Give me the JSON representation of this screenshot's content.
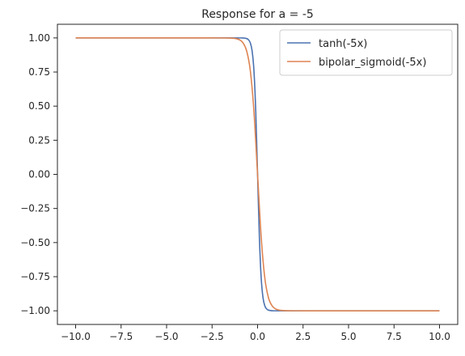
{
  "chart_data": {
    "type": "line",
    "title": "Response for a = -5",
    "xlabel": "",
    "ylabel": "",
    "xlim": [
      -11.0,
      11.0
    ],
    "ylim": [
      -1.1,
      1.1
    ],
    "xticks": [
      -10.0,
      -7.5,
      -5.0,
      -2.5,
      0.0,
      2.5,
      5.0,
      7.5,
      10.0
    ],
    "xtick_labels": [
      "−10.0",
      "−7.5",
      "−5.0",
      "−2.5",
      "0.0",
      "2.5",
      "5.0",
      "7.5",
      "10.0"
    ],
    "yticks": [
      1.0,
      0.75,
      0.5,
      0.25,
      0.0,
      -0.25,
      -0.5,
      -0.75,
      -1.0
    ],
    "ytick_labels": [
      "1.00",
      "0.75",
      "0.50",
      "0.25",
      "0.00",
      "−0.25",
      "−0.50",
      "−0.75",
      "−1.00"
    ],
    "grid": false,
    "legend_position": "top-right",
    "series": [
      {
        "name": "tanh(-5x)",
        "color": "#4c72b0",
        "x": [
          -10,
          -2,
          -1,
          -0.8,
          -0.6,
          -0.5,
          -0.4,
          -0.3,
          -0.2,
          -0.1,
          0,
          0.1,
          0.2,
          0.3,
          0.4,
          0.5,
          0.6,
          0.8,
          1,
          2,
          10
        ],
        "y": [
          1.0,
          1.0,
          0.9999,
          0.9993,
          0.9951,
          0.9866,
          0.964,
          0.9051,
          0.7616,
          0.4621,
          0.0,
          -0.4621,
          -0.7616,
          -0.9051,
          -0.964,
          -0.9866,
          -0.9951,
          -0.9993,
          -0.9999,
          -1.0,
          -1.0
        ]
      },
      {
        "name": "bipolar_sigmoid(-5x)",
        "color": "#dd8452",
        "x": [
          -10,
          -3,
          -2,
          -1.5,
          -1.2,
          -1,
          -0.8,
          -0.6,
          -0.4,
          -0.2,
          0,
          0.2,
          0.4,
          0.6,
          0.8,
          1,
          1.2,
          1.5,
          2,
          3,
          10
        ],
        "y": [
          1.0,
          1.0,
          0.9999,
          0.9989,
          0.995,
          0.9866,
          0.964,
          0.9051,
          0.7616,
          0.4621,
          0.0,
          -0.4621,
          -0.7616,
          -0.9051,
          -0.964,
          -0.9866,
          -0.995,
          -0.9989,
          -0.9999,
          -1.0,
          -1.0
        ]
      }
    ]
  }
}
